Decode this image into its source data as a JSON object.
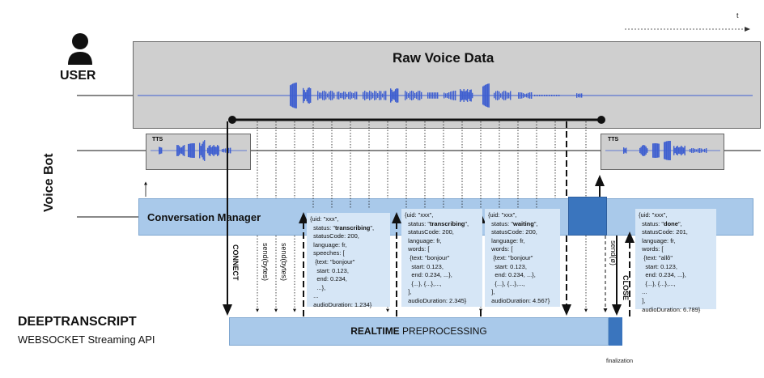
{
  "time_axis": {
    "label": "t"
  },
  "user": {
    "label": "USER"
  },
  "raw_voice": {
    "title": "Raw Voice Data"
  },
  "voice_bot": {
    "label": "Voice Bot",
    "tts_left": "TTS",
    "tts_right": "TTS"
  },
  "conversation_manager": {
    "label": "Conversation Manager"
  },
  "deeptranscript": {
    "title": "DEEPTRANSCRIPT",
    "subtitle": "WEBSOCKET Streaming API"
  },
  "preprocessing": {
    "bold": "REALTIME",
    "rest": " PREPROCESSING"
  },
  "finalization": {
    "label": "finalization"
  },
  "signals": {
    "connect": "CONNECT",
    "send1": "send(bytes)",
    "send2": "send(bytes)",
    "send_empty": "send(ø)",
    "close": "CLOSE"
  },
  "messages": [
    {
      "lines": [
        "{uid: \"xxx\",",
        "  status: \"transcribing\",",
        "  statusCode: 200,",
        "  language: fr,",
        "  speeches: [",
        "   {text: \"bonjour\"",
        "    start: 0.123,",
        "    end: 0.234,",
        "    ...},",
        "  ...",
        "  audioDuration: 1.234}"
      ]
    },
    {
      "lines": [
        "{uid: \"xxx\",",
        "  status: \"transcribing\",",
        "  statusCode: 200,",
        "  language: fr,",
        "  words: [",
        "   {text: \"bonjour\"",
        "    start: 0.123,",
        "    end: 0.234, ...},",
        "    {...}, {...},...,",
        "  ],",
        "  audioDuration: 2.345}"
      ]
    },
    {
      "lines": [
        "{uid: \"xxx\",",
        "  status: \"waiting\",",
        "  statusCode: 200,",
        "  language: fr,",
        "  words: [",
        "   {text: \"bonjour\"",
        "    start: 0.123,",
        "    end: 0.234, ...},",
        "    {...}, {...},...,",
        "  ],",
        "  audioDuration: 4.567}"
      ]
    },
    {
      "lines": [
        "{uid: \"xxx\",",
        "  status: \"done\",",
        "  statusCode: 201,",
        "  language: fr,",
        "  words: [",
        "   {text: \"allô\"",
        "    start: 0.123,",
        "    end: 0.234, ...},",
        "    {...}, {...},...,",
        "  ...",
        "  ],",
        "  audioDuration: 6.789}"
      ]
    }
  ],
  "colors": {
    "raw_bg": "#cfcfcf",
    "cm_bg": "#a9c9ea",
    "json_bg": "#d6e6f6",
    "wave": "#3f5fd0",
    "dark_blue": "#3a75be",
    "pre_bg": "#a9c9ea"
  }
}
